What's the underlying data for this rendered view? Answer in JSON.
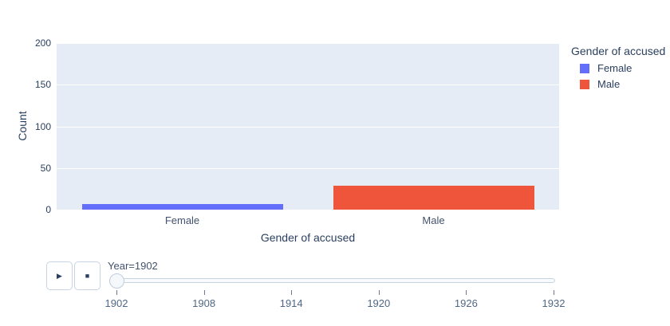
{
  "figure": {
    "background": "#ffffff",
    "text_color": "#2a3f5f"
  },
  "chart_data": {
    "type": "bar",
    "title": "",
    "xlabel": "Gender of accused",
    "ylabel": "Count",
    "ylim": [
      0,
      200
    ],
    "yticks": [
      0,
      50,
      100,
      150,
      200
    ],
    "categories": [
      "Female",
      "Male"
    ],
    "series": [
      {
        "name": "Female",
        "color": "#636EFA",
        "values": [
          7,
          null
        ]
      },
      {
        "name": "Male",
        "color": "#EF553B",
        "values": [
          null,
          29
        ]
      }
    ],
    "legend": {
      "title": "Gender of accused",
      "position": "right"
    },
    "plot_bgcolor": "#E5ECF6",
    "grid": true,
    "gridcolor": "#ffffff"
  },
  "animation": {
    "play_icon": "▶",
    "stop_icon": "■",
    "current_value_label": "Year=1902",
    "slider": {
      "min": 1902,
      "max": 1932,
      "value": 1902,
      "tick_labels": [
        "1902",
        "1908",
        "1914",
        "1920",
        "1926",
        "1932"
      ]
    }
  }
}
